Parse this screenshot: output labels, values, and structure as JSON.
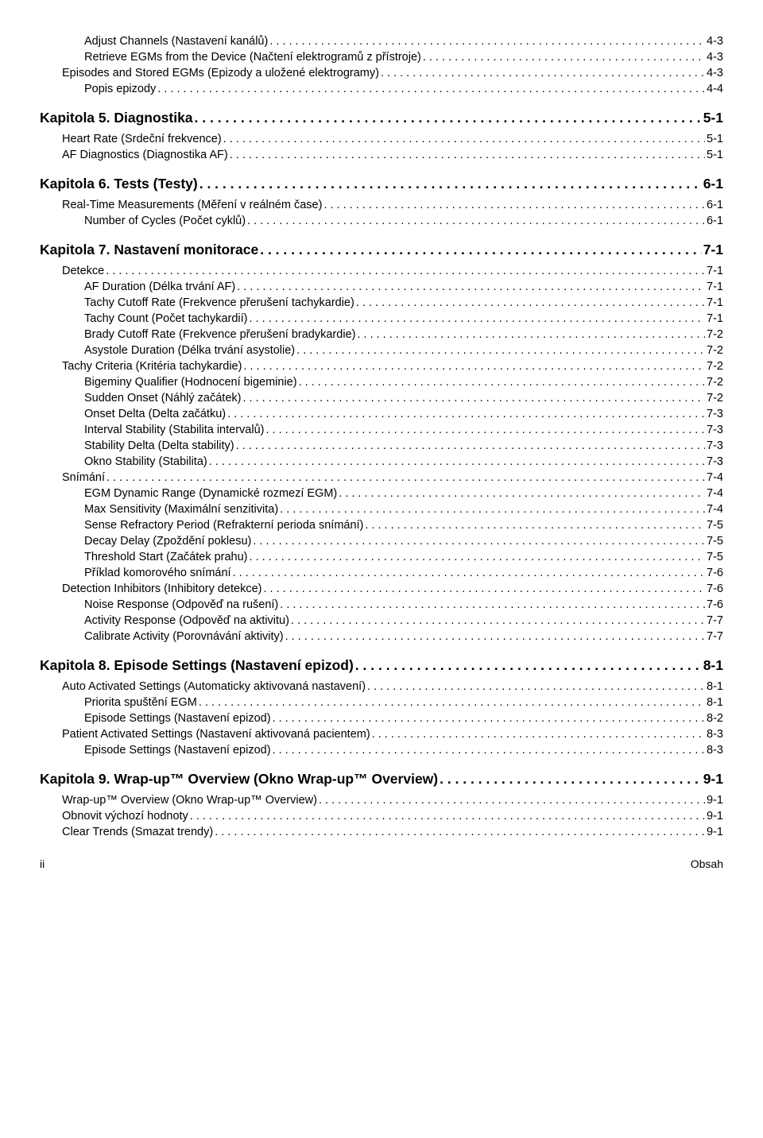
{
  "entries": [
    {
      "label": "Adjust Channels (Nastavení kanálů)",
      "page": "4-3",
      "level": "lvl2"
    },
    {
      "label": "Retrieve EGMs from the Device (Načtení elektrogramů z přístroje)",
      "page": "4-3",
      "level": "lvl2"
    },
    {
      "label": "Episodes and Stored EGMs (Epizody a uložené elektrogramy)",
      "page": "4-3",
      "level": "lvl1"
    },
    {
      "label": "Popis epizody",
      "page": "4-4",
      "level": "lvl2"
    },
    {
      "label": "Kapitola 5. Diagnostika",
      "page": " 5-1",
      "level": "chapter"
    },
    {
      "label": "Heart Rate (Srdeční frekvence)",
      "page": "5-1",
      "level": "lvl1"
    },
    {
      "label": "AF Diagnostics (Diagnostika AF)",
      "page": "5-1",
      "level": "lvl1"
    },
    {
      "label": "Kapitola 6. Tests (Testy)",
      "page": " 6-1",
      "level": "chapter"
    },
    {
      "label": "Real-Time Measurements (Měření v reálném čase)",
      "page": "6-1",
      "level": "lvl1"
    },
    {
      "label": "Number of Cycles (Počet cyklů)",
      "page": "6-1",
      "level": "lvl2"
    },
    {
      "label": "Kapitola 7. Nastavení monitorace",
      "page": " 7-1",
      "level": "chapter"
    },
    {
      "label": "Detekce",
      "page": "7-1",
      "level": "lvl1"
    },
    {
      "label": "AF Duration (Délka trvání AF)",
      "page": "7-1",
      "level": "lvl2"
    },
    {
      "label": "Tachy Cutoff Rate (Frekvence přerušení tachykardie)",
      "page": "7-1",
      "level": "lvl2"
    },
    {
      "label": "Tachy Count (Počet tachykardií)",
      "page": "7-1",
      "level": "lvl2"
    },
    {
      "label": "Brady Cutoff Rate (Frekvence přerušení bradykardie)",
      "page": "7-2",
      "level": "lvl2"
    },
    {
      "label": "Asystole Duration (Délka trvání asystolie)",
      "page": "7-2",
      "level": "lvl2"
    },
    {
      "label": "Tachy Criteria (Kritéria tachykardie)",
      "page": "7-2",
      "level": "lvl1"
    },
    {
      "label": "Bigeminy Qualifier (Hodnocení bigeminie)",
      "page": "7-2",
      "level": "lvl2"
    },
    {
      "label": "Sudden Onset (Náhlý začátek)",
      "page": "7-2",
      "level": "lvl2"
    },
    {
      "label": "Onset Delta (Delta začátku)",
      "page": "7-3",
      "level": "lvl2"
    },
    {
      "label": "Interval Stability (Stabilita intervalů)",
      "page": "7-3",
      "level": "lvl2"
    },
    {
      "label": "Stability Delta (Delta stability)",
      "page": "7-3",
      "level": "lvl2"
    },
    {
      "label": "Okno Stability (Stabilita)",
      "page": "7-3",
      "level": "lvl2"
    },
    {
      "label": "Snímání",
      "page": "7-4",
      "level": "lvl1"
    },
    {
      "label": "EGM Dynamic Range (Dynamické rozmezí EGM)",
      "page": "7-4",
      "level": "lvl2"
    },
    {
      "label": "Max Sensitivity (Maximální senzitivita)",
      "page": "7-4",
      "level": "lvl2"
    },
    {
      "label": "Sense Refractory Period (Refrakterní perioda snímání)",
      "page": "7-5",
      "level": "lvl2"
    },
    {
      "label": "Decay Delay (Zpoždění poklesu)",
      "page": "7-5",
      "level": "lvl2"
    },
    {
      "label": "Threshold Start (Začátek prahu)",
      "page": "7-5",
      "level": "lvl2"
    },
    {
      "label": "Příklad komorového snímání",
      "page": "7-6",
      "level": "lvl2"
    },
    {
      "label": "Detection Inhibitors (Inhibitory detekce)",
      "page": "7-6",
      "level": "lvl1"
    },
    {
      "label": "Noise Response (Odpověď na rušení)",
      "page": "7-6",
      "level": "lvl2"
    },
    {
      "label": "Activity Response (Odpověď na aktivitu)",
      "page": "7-7",
      "level": "lvl2"
    },
    {
      "label": "Calibrate Activity (Porovnávání aktivity)",
      "page": "7-7",
      "level": "lvl2"
    },
    {
      "label": "Kapitola 8. Episode Settings (Nastavení epizod)",
      "page": " 8-1",
      "level": "chapter"
    },
    {
      "label": "Auto Activated Settings (Automaticky aktivovaná nastavení)",
      "page": "8-1",
      "level": "lvl1"
    },
    {
      "label": "Priorita spuštění EGM",
      "page": "8-1",
      "level": "lvl2"
    },
    {
      "label": "Episode Settings (Nastavení epizod)",
      "page": "8-2",
      "level": "lvl2"
    },
    {
      "label": "Patient Activated Settings (Nastavení aktivovaná pacientem)",
      "page": "8-3",
      "level": "lvl1"
    },
    {
      "label": "Episode Settings (Nastavení epizod)",
      "page": "8-3",
      "level": "lvl2"
    },
    {
      "label": "Kapitola 9. Wrap-up™ Overview (Okno Wrap-up™ Overview)",
      "page": " 9-1",
      "level": "chapter"
    },
    {
      "label": "Wrap-up™ Overview (Okno Wrap-up™ Overview)",
      "page": "9-1",
      "level": "lvl1"
    },
    {
      "label": "Obnovit výchozí hodnoty",
      "page": "9-1",
      "level": "lvl1"
    },
    {
      "label": "Clear Trends (Smazat trendy)",
      "page": "9-1",
      "level": "lvl1"
    }
  ],
  "footer": {
    "left": "ii",
    "right": "Obsah"
  }
}
